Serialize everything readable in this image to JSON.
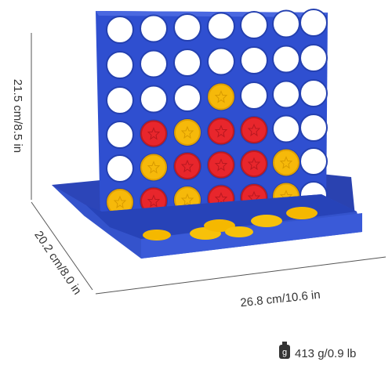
{
  "dimensions": {
    "height": "21.5 cm/8.5 in",
    "depth": "20.2 cm/8.0 in",
    "width": "26.8 cm/10.6 in"
  },
  "weight": {
    "icon": "g",
    "text": "413 g/0.9 lb"
  }
}
